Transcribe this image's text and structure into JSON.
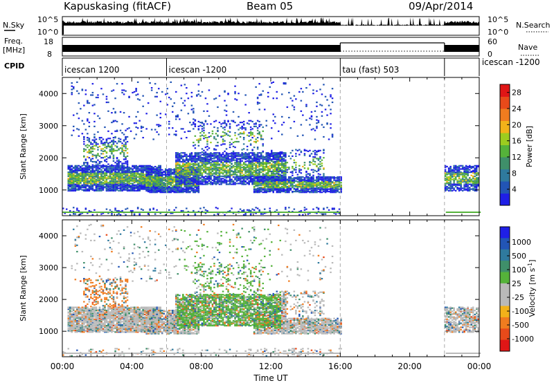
{
  "header": {
    "station": "Kapuskasing (fitACF)",
    "beam": "Beam 05",
    "date": "09/Apr/2014"
  },
  "panels": {
    "nsky": {
      "label": "N.Sky",
      "ytick_top": "10^5",
      "ytick_bottom": "10^0",
      "right_label": "N.Search",
      "right_tick_top": "10^5",
      "right_tick_bottom": "10^0"
    },
    "freq": {
      "label_top": "Freq.",
      "label_bottom": "[MHz]",
      "ytick_top": "18",
      "ytick_bottom": "8",
      "right_label": "Nave",
      "right_tick_top": "60",
      "right_tick_bottom": "0"
    },
    "cpid": {
      "label": "CPID"
    }
  },
  "cpid_segments": [
    {
      "label": "icescan 1200",
      "start_hour": 0
    },
    {
      "label": "icescan -1200",
      "start_hour": 6
    },
    {
      "label": "tau (fast) 503",
      "start_hour": 16
    },
    {
      "label": "icescan -1200",
      "start_hour": 22
    }
  ],
  "colors": {
    "power_scale": [
      "#1f1fe6",
      "#2255b5",
      "#2f7a9e",
      "#3f8f6a",
      "#55b23a",
      "#9ccc1f",
      "#f2b21a",
      "#f07c1f",
      "#e84a1a",
      "#e01616"
    ],
    "velocity_scale": [
      "#1f1fe6",
      "#2255b5",
      "#2f7a9e",
      "#3f8f6a",
      "#55b23a",
      "#b9b9b9",
      "#b9b9b9",
      "#f2b21a",
      "#f07c1f",
      "#e84a1a",
      "#e01616"
    ]
  },
  "chart_data": [
    {
      "type": "heatmap",
      "name": "power",
      "ylabel": "Slant Range [km]",
      "xlim": [
        0,
        24
      ],
      "ylim": [
        200,
        4500
      ],
      "yticks": [
        "1000",
        "2000",
        "3000",
        "4000"
      ],
      "colorbar": {
        "label": "Power [dB]",
        "ticks": [
          "4",
          "8",
          "12",
          "16",
          "20",
          "24",
          "28"
        ],
        "range": [
          0,
          30
        ]
      }
    },
    {
      "type": "heatmap",
      "name": "velocity",
      "ylabel": "Slant Range [km]",
      "xlabel": "Time UT",
      "xlim": [
        0,
        24
      ],
      "ylim": [
        200,
        4500
      ],
      "xticks": [
        "00:00",
        "04:00",
        "08:00",
        "12:00",
        "16:00",
        "20:00",
        "00:00"
      ],
      "yticks": [
        "1000",
        "2000",
        "3000",
        "4000"
      ],
      "colorbar": {
        "label_main": "Velocity  [m s",
        "label_sup": "-1",
        "label_end": "]",
        "ticks": [
          "1000",
          "500",
          "100",
          "25",
          "-25",
          "-100",
          "-500",
          "-1000"
        ]
      }
    }
  ],
  "bands": [
    {
      "t0": 0.3,
      "t1": 5.6,
      "r0": 1000,
      "r1": 1800,
      "density": 0.75
    },
    {
      "t0": 1.2,
      "t1": 3.8,
      "r0": 1800,
      "r1": 2700,
      "density": 0.25
    },
    {
      "t0": 4.8,
      "t1": 7.8,
      "r0": 950,
      "r1": 1700,
      "density": 0.7
    },
    {
      "t0": 6.5,
      "t1": 12.8,
      "r0": 1200,
      "r1": 2200,
      "density": 0.6
    },
    {
      "t0": 7.5,
      "t1": 11.5,
      "r0": 2200,
      "r1": 3200,
      "density": 0.12
    },
    {
      "t0": 11.0,
      "t1": 16.0,
      "r0": 950,
      "r1": 1450,
      "density": 0.7
    },
    {
      "t0": 12.0,
      "t1": 15.0,
      "r0": 1450,
      "r1": 2300,
      "density": 0.15
    },
    {
      "t0": 22.0,
      "t1": 24.0,
      "r0": 1000,
      "r1": 1800,
      "density": 0.55
    },
    {
      "t0": 0.0,
      "t1": 16.0,
      "r0": 250,
      "r1": 500,
      "density": 0.12
    },
    {
      "t0": 0.5,
      "t1": 15.5,
      "r0": 2600,
      "r1": 4400,
      "density": 0.03
    }
  ]
}
